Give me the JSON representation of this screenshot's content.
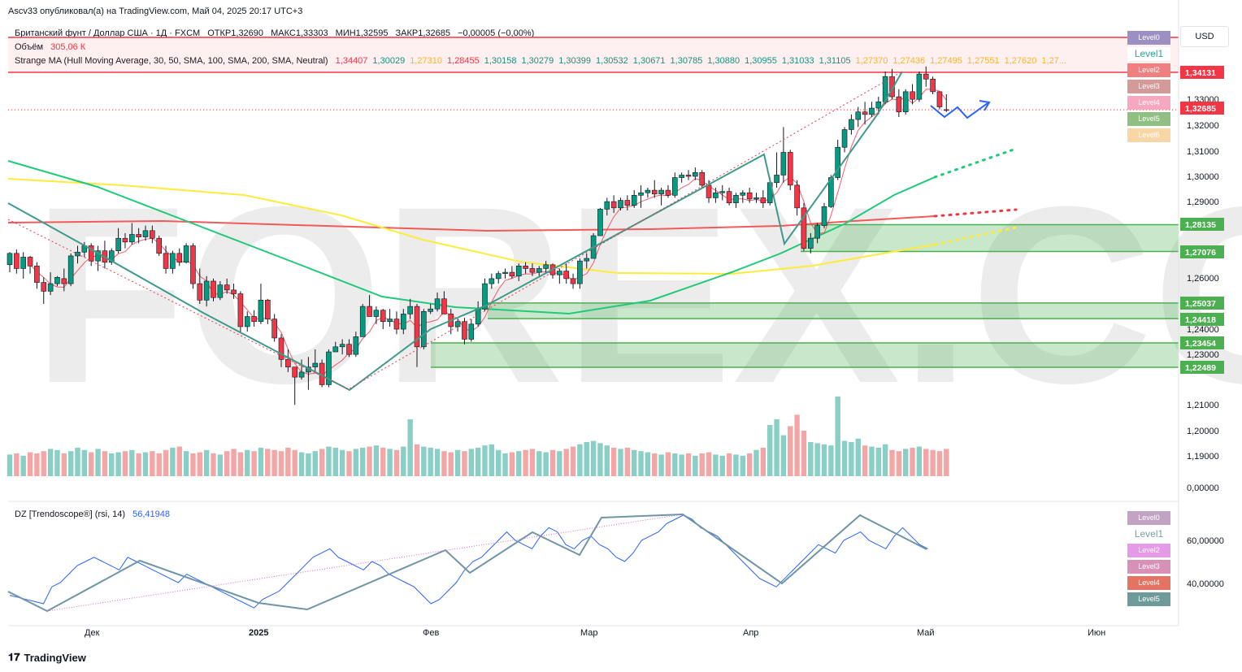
{
  "header": {
    "publish": "Ascv33 опубликовал(а) на TradingView.com, Май 04, 2025 20:17 UTC+3"
  },
  "legend": {
    "symbol": "Британский фунт / Доллар США · 1Д · FXCM",
    "open": "ОТКР1,32690",
    "high": "МАКС1,33303",
    "low": "МИН1,32595",
    "close": "ЗАКР1,32685",
    "change": "−0,00005 (−0,00%)",
    "volume_label": "Объём",
    "volume_value": "305,06 К",
    "ma_label": "Strange MA (Hull Moving Average, 30, 50, SMA, 100, SMA, 200, SMA, Neutral)",
    "ma_values": [
      "1,34407",
      "1,30029",
      "1,27310",
      "1,28455",
      "1,30158",
      "1,30279",
      "1,30399",
      "1,30532",
      "1,30671",
      "1,30785",
      "1,30880",
      "1,30955",
      "1,31033",
      "1,31105",
      "1,27370",
      "1,27436",
      "1,27495",
      "1,27551",
      "1,27620",
      "1,27..."
    ],
    "ma_colors": [
      "#f23645",
      "#089981",
      "#fbc02d",
      "#f23645",
      "#089981",
      "#089981",
      "#089981",
      "#089981",
      "#089981",
      "#089981",
      "#089981",
      "#089981",
      "#089981",
      "#089981",
      "#fbc02d",
      "#fbc02d",
      "#fbc02d",
      "#fbc02d",
      "#fbc02d",
      "#fbc02d"
    ],
    "rsi_label": "DZ [Trendoscope®] (rsi, 14)",
    "rsi_value": "56,41948"
  },
  "currency": "USD",
  "level_boxes_main": [
    {
      "label": "Level0",
      "bg": "#9c8fc4",
      "fg": "#ffffff"
    },
    {
      "label": "Level1",
      "bg": "#ffffff",
      "fg": "#26a69a"
    },
    {
      "label": "Level2",
      "bg": "#f08080",
      "fg": "#ffffff"
    },
    {
      "label": "Level3",
      "bg": "#d49a9a",
      "fg": "#ffffff"
    },
    {
      "label": "Level4",
      "bg": "#f7a7c0",
      "fg": "#ffffff"
    },
    {
      "label": "Level5",
      "bg": "#8fbf82",
      "fg": "#ffffff"
    },
    {
      "label": "Level6",
      "bg": "#f9d6a5",
      "fg": "#ffffff"
    }
  ],
  "level_boxes_rsi": [
    {
      "label": "Level0",
      "bg": "#c3a3c3",
      "fg": "#ffffff"
    },
    {
      "label": "Level1",
      "bg": "#ffffff",
      "fg": "#7aa0a6"
    },
    {
      "label": "Level2",
      "bg": "#e59ae8",
      "fg": "#ffffff"
    },
    {
      "label": "Level3",
      "bg": "#d890b6",
      "fg": "#ffffff"
    },
    {
      "label": "Level4",
      "bg": "#e57363",
      "fg": "#ffffff"
    },
    {
      "label": "Level5",
      "bg": "#6f9a9a",
      "fg": "#ffffff"
    }
  ],
  "price_axis": {
    "ticks": [
      "1,33000",
      "1,32000",
      "1,31000",
      "1,30000",
      "1,29000",
      "1,26000",
      "1,24000",
      "1,23000",
      "1,21000",
      "1,20000",
      "1,19000",
      "0,00000"
    ],
    "badges": [
      {
        "value": "1,34131",
        "color": "#f23645"
      },
      {
        "value": "1,32685",
        "color": "#f23645"
      },
      {
        "value": "1,28135",
        "color": "#4caf50"
      },
      {
        "value": "1,27076",
        "color": "#4caf50"
      },
      {
        "value": "1,25037",
        "color": "#4caf50"
      },
      {
        "value": "1,24418",
        "color": "#4caf50"
      },
      {
        "value": "1,23454",
        "color": "#4caf50"
      },
      {
        "value": "1,22489",
        "color": "#4caf50"
      }
    ]
  },
  "rsi_axis": {
    "ticks": [
      "60,00000",
      "40,00000"
    ]
  },
  "time_axis": {
    "labels": [
      "Дек",
      "2025",
      "Фев",
      "Мар",
      "Апр",
      "Май",
      "Июн"
    ]
  },
  "watermark": "FOREX.COM",
  "footer": {
    "brand": "TradingView"
  },
  "chart_data": {
    "type": "candlestick",
    "ylim": [
      1.175,
      1.352
    ],
    "ohlc": [
      [
        1.2655,
        1.2705,
        1.2625,
        1.27
      ],
      [
        1.27,
        1.2715,
        1.262,
        1.264
      ],
      [
        1.264,
        1.2705,
        1.26,
        1.2685
      ],
      [
        1.2685,
        1.269,
        1.262,
        1.265
      ],
      [
        1.265,
        1.2665,
        1.256,
        1.2585
      ],
      [
        1.2585,
        1.2605,
        1.25,
        1.255
      ],
      [
        1.255,
        1.2625,
        1.2535,
        1.258
      ],
      [
        1.258,
        1.261,
        1.257,
        1.2605
      ],
      [
        1.26,
        1.264,
        1.255,
        1.258
      ],
      [
        1.258,
        1.27,
        1.257,
        1.269
      ],
      [
        1.269,
        1.273,
        1.266,
        1.2705
      ],
      [
        1.2705,
        1.2745,
        1.2685,
        1.273
      ],
      [
        1.273,
        1.274,
        1.265,
        1.267
      ],
      [
        1.267,
        1.273,
        1.263,
        1.271
      ],
      [
        1.271,
        1.275,
        1.264,
        1.2665
      ],
      [
        1.2665,
        1.272,
        1.2655,
        1.271
      ],
      [
        1.271,
        1.28,
        1.27,
        1.276
      ],
      [
        1.276,
        1.278,
        1.272,
        1.2745
      ],
      [
        1.2745,
        1.282,
        1.2735,
        1.2775
      ],
      [
        1.2775,
        1.28,
        1.274,
        1.2765
      ],
      [
        1.2765,
        1.281,
        1.275,
        1.279
      ],
      [
        1.279,
        1.281,
        1.274,
        1.276
      ],
      [
        1.276,
        1.277,
        1.269,
        1.27
      ],
      [
        1.27,
        1.273,
        1.262,
        1.264
      ],
      [
        1.264,
        1.271,
        1.262,
        1.27
      ],
      [
        1.27,
        1.272,
        1.265,
        1.2665
      ],
      [
        1.2665,
        1.274,
        1.266,
        1.273
      ],
      [
        1.273,
        1.274,
        1.256,
        1.258
      ],
      [
        1.258,
        1.264,
        1.25,
        1.2515
      ],
      [
        1.2515,
        1.261,
        1.249,
        1.259
      ],
      [
        1.259,
        1.26,
        1.251,
        1.2525
      ],
      [
        1.2525,
        1.259,
        1.2515,
        1.2575
      ],
      [
        1.2575,
        1.26,
        1.254,
        1.2555
      ],
      [
        1.2555,
        1.258,
        1.252,
        1.254
      ],
      [
        1.254,
        1.255,
        1.239,
        1.241
      ],
      [
        1.241,
        1.247,
        1.239,
        1.245
      ],
      [
        1.245,
        1.2475,
        1.241,
        1.243
      ],
      [
        1.243,
        1.258,
        1.242,
        1.2515
      ],
      [
        1.2515,
        1.252,
        1.242,
        1.244
      ],
      [
        1.244,
        1.246,
        1.235,
        1.2365
      ],
      [
        1.2365,
        1.238,
        1.225,
        1.228
      ],
      [
        1.228,
        1.232,
        1.223,
        1.225
      ],
      [
        1.225,
        1.225,
        1.21,
        1.221
      ],
      [
        1.221,
        1.228,
        1.22,
        1.223
      ],
      [
        1.223,
        1.229,
        1.216,
        1.225
      ],
      [
        1.225,
        1.232,
        1.223,
        1.2265
      ],
      [
        1.2265,
        1.228,
        1.217,
        1.218
      ],
      [
        1.218,
        1.232,
        1.217,
        1.231
      ],
      [
        1.231,
        1.235,
        1.231,
        1.233
      ],
      [
        1.233,
        1.236,
        1.23,
        1.234
      ],
      [
        1.234,
        1.236,
        1.229,
        1.23
      ],
      [
        1.23,
        1.239,
        1.229,
        1.237
      ],
      [
        1.237,
        1.25,
        1.237,
        1.249
      ],
      [
        1.249,
        1.2535,
        1.245,
        1.245
      ],
      [
        1.245,
        1.249,
        1.242,
        1.2475
      ],
      [
        1.2475,
        1.248,
        1.24,
        1.243
      ],
      [
        1.243,
        1.248,
        1.241,
        1.244
      ],
      [
        1.244,
        1.247,
        1.238,
        1.24
      ],
      [
        1.24,
        1.248,
        1.238,
        1.246
      ],
      [
        1.246,
        1.252,
        1.244,
        1.249
      ],
      [
        1.249,
        1.25,
        1.225,
        1.233
      ],
      [
        1.233,
        1.248,
        1.232,
        1.247
      ],
      [
        1.247,
        1.25,
        1.246,
        1.248
      ],
      [
        1.248,
        1.2545,
        1.247,
        1.252
      ],
      [
        1.252,
        1.255,
        1.246,
        1.246
      ],
      [
        1.246,
        1.248,
        1.238,
        1.241
      ],
      [
        1.241,
        1.244,
        1.239,
        1.243
      ],
      [
        1.243,
        1.2445,
        1.234,
        1.236
      ],
      [
        1.236,
        1.244,
        1.235,
        1.242
      ],
      [
        1.242,
        1.251,
        1.241,
        1.248
      ],
      [
        1.248,
        1.26,
        1.247,
        1.258
      ],
      [
        1.258,
        1.262,
        1.256,
        1.26
      ],
      [
        1.26,
        1.263,
        1.258,
        1.262
      ],
      [
        1.262,
        1.264,
        1.26,
        1.2625
      ],
      [
        1.2625,
        1.265,
        1.26,
        1.261
      ],
      [
        1.261,
        1.266,
        1.259,
        1.265
      ],
      [
        1.265,
        1.2665,
        1.262,
        1.264
      ],
      [
        1.264,
        1.266,
        1.261,
        1.2625
      ],
      [
        1.2625,
        1.265,
        1.261,
        1.264
      ],
      [
        1.264,
        1.267,
        1.262,
        1.2655
      ],
      [
        1.2655,
        1.266,
        1.26,
        1.2615
      ],
      [
        1.2615,
        1.264,
        1.258,
        1.263
      ],
      [
        1.263,
        1.266,
        1.258,
        1.26
      ],
      [
        1.26,
        1.262,
        1.256,
        1.258
      ],
      [
        1.258,
        1.268,
        1.256,
        1.267
      ],
      [
        1.267,
        1.27,
        1.264,
        1.268
      ],
      [
        1.268,
        1.278,
        1.268,
        1.277
      ],
      [
        1.277,
        1.288,
        1.277,
        1.2875
      ],
      [
        1.2875,
        1.292,
        1.285,
        1.2905
      ],
      [
        1.2905,
        1.293,
        1.286,
        1.288
      ],
      [
        1.288,
        1.292,
        1.287,
        1.291
      ],
      [
        1.291,
        1.293,
        1.287,
        1.289
      ],
      [
        1.289,
        1.295,
        1.288,
        1.293
      ],
      [
        1.293,
        1.297,
        1.288,
        1.294
      ],
      [
        1.294,
        1.296,
        1.292,
        1.295
      ],
      [
        1.295,
        1.299,
        1.292,
        1.2935
      ],
      [
        1.2935,
        1.296,
        1.289,
        1.295
      ],
      [
        1.295,
        1.297,
        1.292,
        1.293
      ],
      [
        1.293,
        1.302,
        1.292,
        1.3
      ],
      [
        1.3,
        1.302,
        1.298,
        1.301
      ],
      [
        1.301,
        1.303,
        1.299,
        1.3005
      ],
      [
        1.3005,
        1.304,
        1.299,
        1.302
      ],
      [
        1.302,
        1.303,
        1.296,
        1.297
      ],
      [
        1.297,
        1.299,
        1.29,
        1.292
      ],
      [
        1.292,
        1.296,
        1.29,
        1.294
      ],
      [
        1.294,
        1.297,
        1.291,
        1.2945
      ],
      [
        1.2945,
        1.296,
        1.289,
        1.29
      ],
      [
        1.29,
        1.294,
        1.288,
        1.293
      ],
      [
        1.293,
        1.295,
        1.29,
        1.294
      ],
      [
        1.294,
        1.296,
        1.29,
        1.2915
      ],
      [
        1.2915,
        1.294,
        1.29,
        1.292
      ],
      [
        1.292,
        1.295,
        1.288,
        1.29
      ],
      [
        1.29,
        1.3,
        1.289,
        1.298
      ],
      [
        1.298,
        1.31,
        1.296,
        1.301
      ],
      [
        1.301,
        1.32,
        1.298,
        1.31
      ],
      [
        1.31,
        1.311,
        1.295,
        1.297
      ],
      [
        1.297,
        1.299,
        1.285,
        1.288
      ],
      [
        1.288,
        1.29,
        1.271,
        1.272
      ],
      [
        1.272,
        1.278,
        1.27,
        1.276
      ],
      [
        1.276,
        1.282,
        1.274,
        1.281
      ],
      [
        1.281,
        1.29,
        1.28,
        1.2885
      ],
      [
        1.2885,
        1.301,
        1.288,
        1.3
      ],
      [
        1.3,
        1.315,
        1.299,
        1.312
      ],
      [
        1.312,
        1.32,
        1.31,
        1.319
      ],
      [
        1.319,
        1.325,
        1.317,
        1.323
      ],
      [
        1.323,
        1.328,
        1.32,
        1.326
      ],
      [
        1.326,
        1.33,
        1.321,
        1.325
      ],
      [
        1.325,
        1.33,
        1.324,
        1.3275
      ],
      [
        1.3275,
        1.332,
        1.325,
        1.33
      ],
      [
        1.33,
        1.342,
        1.329,
        1.34
      ],
      [
        1.34,
        1.343,
        1.331,
        1.332
      ],
      [
        1.332,
        1.335,
        1.324,
        1.326
      ],
      [
        1.326,
        1.335,
        1.325,
        1.334
      ],
      [
        1.334,
        1.337,
        1.329,
        1.331
      ],
      [
        1.331,
        1.342,
        1.33,
        1.341
      ],
      [
        1.341,
        1.344,
        1.336,
        1.339
      ],
      [
        1.339,
        1.34,
        1.333,
        1.334
      ],
      [
        1.334,
        1.334,
        1.327,
        1.328
      ],
      [
        1.3269,
        1.333,
        1.326,
        1.32685
      ]
    ],
    "volume": [
      0.38,
      0.4,
      0.36,
      0.42,
      0.4,
      0.44,
      0.48,
      0.46,
      0.4,
      0.44,
      0.5,
      0.46,
      0.42,
      0.48,
      0.44,
      0.4,
      0.42,
      0.44,
      0.46,
      0.4,
      0.42,
      0.44,
      0.4,
      0.46,
      0.5,
      0.52,
      0.44,
      0.4,
      0.42,
      0.46,
      0.4,
      0.38,
      0.44,
      0.48,
      0.42,
      0.46,
      0.44,
      0.5,
      0.48,
      0.46,
      0.44,
      0.5,
      0.46,
      0.42,
      0.4,
      0.44,
      0.48,
      0.52,
      0.5,
      0.46,
      0.44,
      0.48,
      0.5,
      0.52,
      0.54,
      0.5,
      0.48,
      0.46,
      0.52,
      1.0,
      0.56,
      0.52,
      0.5,
      0.48,
      0.44,
      0.42,
      0.46,
      0.44,
      0.48,
      0.5,
      0.54,
      0.56,
      0.46,
      0.4,
      0.42,
      0.44,
      0.46,
      0.48,
      0.44,
      0.42,
      0.46,
      0.44,
      0.48,
      0.52,
      0.56,
      0.6,
      0.62,
      0.58,
      0.54,
      0.5,
      0.48,
      0.5,
      0.46,
      0.44,
      0.42,
      0.4,
      0.38,
      0.42,
      0.4,
      0.38,
      0.4,
      0.36,
      0.4,
      0.42,
      0.38,
      0.36,
      0.4,
      0.38,
      0.36,
      0.4,
      0.46,
      0.5,
      0.9,
      1.0,
      0.72,
      0.88,
      1.08,
      0.8,
      0.6,
      0.58,
      0.56,
      0.54,
      1.4,
      0.62,
      0.6,
      0.66,
      0.54,
      0.52,
      0.5,
      0.56,
      0.46,
      0.44,
      0.48,
      0.5,
      0.52,
      0.48,
      0.46,
      0.44,
      0.48,
      0.5,
      0.46
    ],
    "ma_slow_red": [
      1.2728,
      1.2735,
      1.2738,
      1.274,
      1.2745,
      1.2745,
      1.2748,
      1.275
    ],
    "rsi": [
      34,
      33,
      32,
      31,
      30,
      38,
      40,
      44,
      48,
      50,
      52,
      50,
      48,
      46,
      52,
      50,
      48,
      46,
      44,
      42,
      40,
      44,
      42,
      40,
      38,
      36,
      34,
      32,
      30,
      28,
      32,
      34,
      36,
      40,
      44,
      48,
      52,
      54,
      56,
      52,
      50,
      48,
      46,
      50,
      48,
      44,
      42,
      40,
      38,
      34,
      30,
      32,
      36,
      40,
      46,
      50,
      52,
      56,
      60,
      64,
      60,
      58,
      56,
      62,
      66,
      64,
      58,
      56,
      60,
      62,
      58,
      56,
      52,
      50,
      54,
      60,
      62,
      64,
      68,
      70,
      72,
      70,
      66,
      64,
      62,
      58,
      54,
      50,
      46,
      42,
      40,
      38,
      42,
      46,
      50,
      54,
      58,
      56,
      54,
      60,
      62,
      64,
      60,
      58,
      56,
      62,
      66,
      62,
      58,
      56
    ]
  }
}
